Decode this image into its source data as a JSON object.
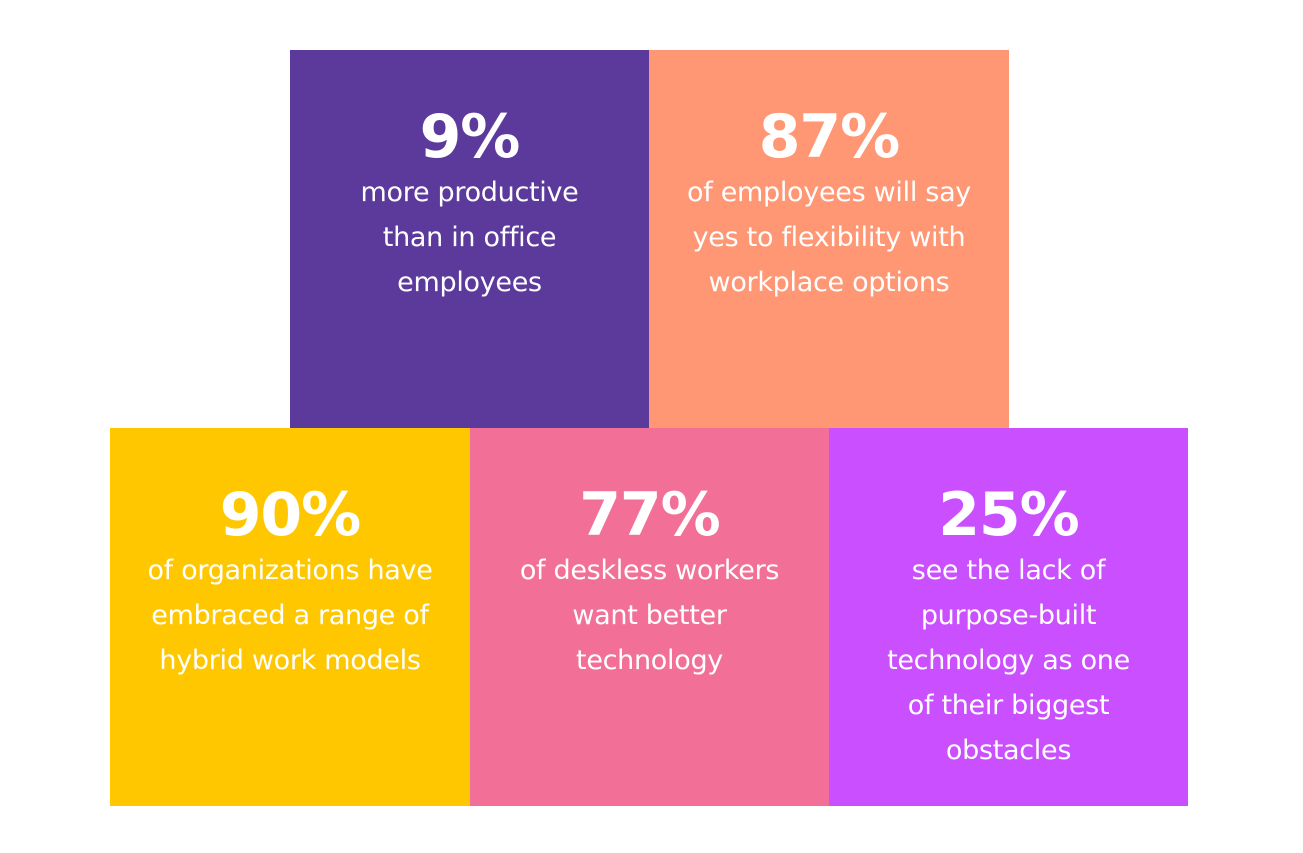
{
  "tiles": [
    {
      "stat": "9%",
      "lines": [
        "more productive",
        "than in office",
        "employees"
      ],
      "color": "#5c3a9c"
    },
    {
      "stat": "87%",
      "lines": [
        "of employees will say",
        "yes to flexibility with",
        "workplace options"
      ],
      "color": "#ff9674"
    },
    {
      "stat": "90%",
      "lines": [
        "of organizations have",
        "embraced a range of",
        "hybrid work models"
      ],
      "color": "#ffc700"
    },
    {
      "stat": "77%",
      "lines": [
        "of deskless workers",
        "want better",
        "technology"
      ],
      "color": "#f27098"
    },
    {
      "stat": "25%",
      "lines": [
        "see the lack of",
        "purpose-built",
        "technology as one",
        "of their biggest",
        "obstacles"
      ],
      "color": "#c94fff"
    }
  ]
}
